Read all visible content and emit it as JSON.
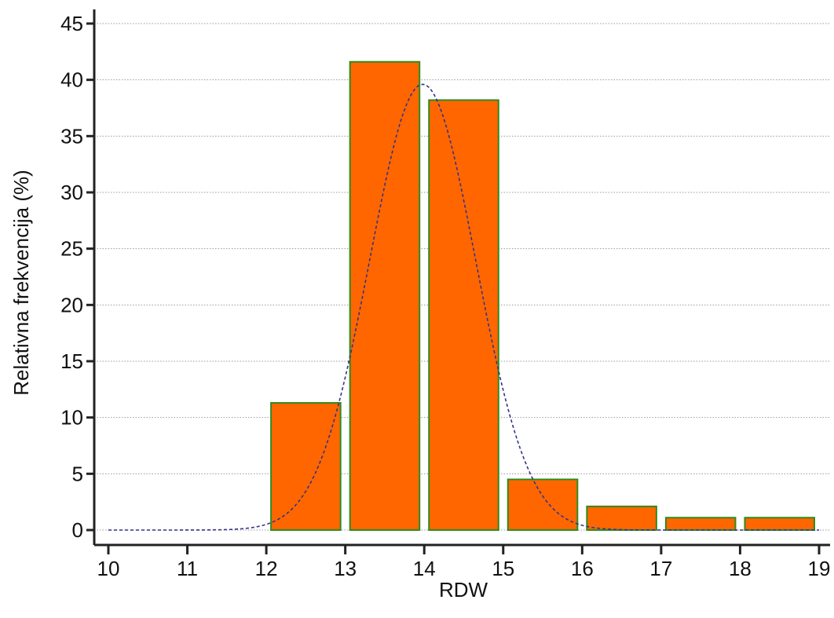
{
  "chart_data": {
    "type": "bar",
    "title": "",
    "xlabel": "RDW",
    "ylabel": "Relativna frekvencija (%)",
    "xlim": [
      10,
      19
    ],
    "ylim": [
      0,
      45
    ],
    "x_ticks": [
      "10",
      "11",
      "12",
      "13",
      "14",
      "15",
      "16",
      "17",
      "18",
      "19"
    ],
    "y_ticks": [
      "0",
      "5",
      "10",
      "15",
      "20",
      "25",
      "30",
      "35",
      "40",
      "45"
    ],
    "grid": "horizontal-dotted",
    "bins": [
      {
        "start": 12,
        "end": 13,
        "value": 11.3
      },
      {
        "start": 13,
        "end": 14,
        "value": 41.6
      },
      {
        "start": 14,
        "end": 15,
        "value": 38.2
      },
      {
        "start": 15,
        "end": 16,
        "value": 4.5
      },
      {
        "start": 16,
        "end": 17,
        "value": 2.1
      },
      {
        "start": 17,
        "end": 18,
        "value": 1.1
      },
      {
        "start": 18,
        "end": 19,
        "value": 1.1
      }
    ],
    "normal_curve": {
      "mean": 13.98,
      "sd": 0.67,
      "peak": 39.6,
      "style": "dashed"
    },
    "colors": {
      "bar_fill": "#ff6600",
      "bar_stroke": "#2e8b1e",
      "curve": "#33338a",
      "grid": "#9a9a9a",
      "axis": "#222222"
    }
  }
}
